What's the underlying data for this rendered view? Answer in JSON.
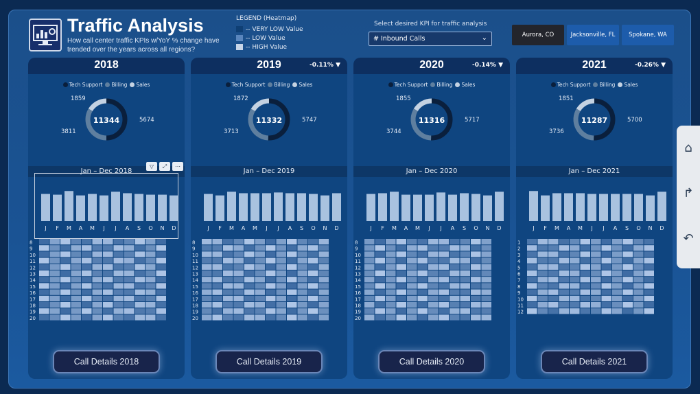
{
  "header": {
    "title": "Traffic Analysis",
    "subtitle": "How call center traffic KPIs w/YoY % change have trended over the years across all regions?"
  },
  "legend": {
    "title": "LEGEND (Heatmap)",
    "items": [
      {
        "label": "-- VERY LOW Value",
        "color": "#0f3f74"
      },
      {
        "label": "-- LOW Value",
        "color": "#5a86bd"
      },
      {
        "label": "-- HIGH Value",
        "color": "#c7d5e8"
      }
    ]
  },
  "kpi": {
    "label": "Select desired KPI for traffic analysis",
    "selected": "# Inbound Calls"
  },
  "regions": [
    {
      "label": "Aurora, CO",
      "active": true
    },
    {
      "label": "Jacksonville, FL",
      "active": false
    },
    {
      "label": "Spokane, WA",
      "active": false
    }
  ],
  "series_legend": [
    "Tech Support",
    "Billing",
    "Sales"
  ],
  "months": [
    "J",
    "F",
    "M",
    "A",
    "M",
    "J",
    "J",
    "A",
    "S",
    "O",
    "N",
    "D"
  ],
  "colors": {
    "tech": "#0a1f3c",
    "billing": "#5f7f9f",
    "sales": "#c4d2e2",
    "bar": "#a9c2df"
  },
  "nav_icons": [
    "home-icon",
    "forward-icon",
    "back-icon"
  ],
  "years": [
    {
      "year": "2018",
      "yoy": "",
      "donut": {
        "total": "11344",
        "label_top": "1859",
        "label_left": "3811",
        "label_right": "5674",
        "values": {
          "tech": 5674,
          "billing": 3811,
          "sales": 1859
        }
      },
      "period": "Jan – Dec 2018",
      "monthly": [
        74,
        72,
        82,
        70,
        74,
        70,
        80,
        76,
        74,
        72,
        72,
        70
      ],
      "hour_labels": [
        "8",
        "9",
        "10",
        "11",
        "12",
        "13",
        "14",
        "15",
        "16",
        "17",
        "18",
        "19",
        "20"
      ],
      "button": "Call Details 2018"
    },
    {
      "year": "2019",
      "yoy": "-0.11% ▼",
      "donut": {
        "total": "11332",
        "label_top": "1872",
        "label_left": "3713",
        "label_right": "5747",
        "values": {
          "tech": 5747,
          "billing": 3713,
          "sales": 1872
        }
      },
      "period": "Jan – Dec 2019",
      "monthly": [
        74,
        70,
        80,
        76,
        76,
        76,
        78,
        76,
        76,
        74,
        70,
        76
      ],
      "hour_labels": [
        "8",
        "9",
        "10",
        "11",
        "12",
        "13",
        "14",
        "15",
        "16",
        "17",
        "18",
        "19",
        "20"
      ],
      "button": "Call Details 2019"
    },
    {
      "year": "2020",
      "yoy": "-0.14% ▼",
      "donut": {
        "total": "11316",
        "label_top": "1855",
        "label_left": "3744",
        "label_right": "5717",
        "values": {
          "tech": 5717,
          "billing": 3744,
          "sales": 1855
        }
      },
      "period": "Jan – Dec 2020",
      "monthly": [
        74,
        76,
        80,
        72,
        72,
        72,
        78,
        72,
        76,
        74,
        70,
        80
      ],
      "hour_labels": [
        "8",
        "9",
        "10",
        "11",
        "12",
        "13",
        "14",
        "15",
        "16",
        "17",
        "18",
        "19",
        "20"
      ],
      "button": "Call Details 2020"
    },
    {
      "year": "2021",
      "yoy": "-0.26% ▼",
      "donut": {
        "total": "11287",
        "label_top": "1851",
        "label_left": "3736",
        "label_right": "5700",
        "values": {
          "tech": 5700,
          "billing": 3736,
          "sales": 1851
        }
      },
      "period": "Jan – Dec 2021",
      "monthly": [
        82,
        70,
        76,
        76,
        76,
        74,
        74,
        74,
        74,
        74,
        70,
        80
      ],
      "hour_labels": [
        "1",
        "2",
        "3",
        "4",
        "5",
        "6",
        "7",
        "8",
        "9",
        "10",
        "11",
        "12"
      ],
      "button": "Call Details 2021"
    }
  ]
}
